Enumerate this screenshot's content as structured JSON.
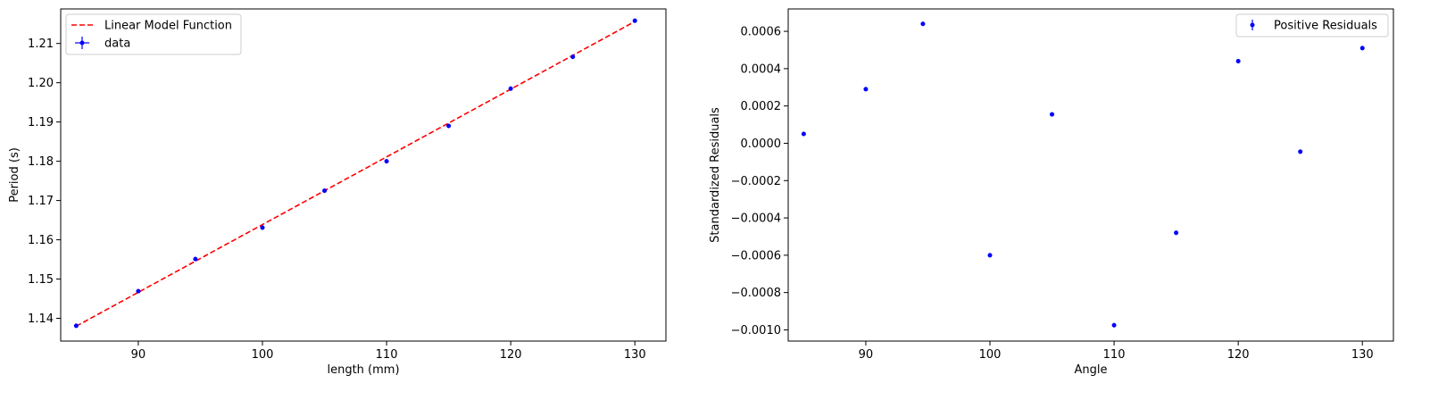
{
  "chart_data": [
    {
      "type": "scatter",
      "xlabel": "length (mm)",
      "ylabel": "Period (s)",
      "xlim": [
        83.75,
        132.5
      ],
      "ylim": [
        1.1342,
        1.2188
      ],
      "xticks": [
        90,
        100,
        110,
        120,
        130
      ],
      "yticks": [
        1.14,
        1.15,
        1.16,
        1.17,
        1.18,
        1.19,
        1.2,
        1.21
      ],
      "ytick_labels": [
        "1.14",
        "1.15",
        "1.16",
        "1.17",
        "1.18",
        "1.19",
        "1.20",
        "1.21"
      ],
      "legend_position": "top-left",
      "series": [
        {
          "name": "Linear Model Function",
          "kind": "line",
          "style": "dashed",
          "color": "#ff0000",
          "x": [
            85,
            130
          ],
          "y": [
            1.138,
            1.2156
          ]
        },
        {
          "name": "data",
          "kind": "errorbar",
          "color": "#0000ff",
          "x": [
            85,
            90,
            94.6,
            100,
            105,
            110,
            115,
            120,
            125,
            130
          ],
          "y": [
            1.1381,
            1.1469,
            1.1551,
            1.1631,
            1.1725,
            1.18,
            1.189,
            1.1985,
            1.2066,
            1.2158
          ]
        }
      ]
    },
    {
      "type": "scatter",
      "xlabel": "Angle",
      "ylabel": "Standardized Residuals",
      "xlim": [
        83.75,
        132.5
      ],
      "ylim": [
        -0.00106,
        0.00072
      ],
      "xticks": [
        90,
        100,
        110,
        120,
        130
      ],
      "yticks": [
        -0.001,
        -0.0008,
        -0.0006,
        -0.0004,
        -0.0002,
        0.0,
        0.0002,
        0.0004,
        0.0006
      ],
      "ytick_labels": [
        "−0.0010",
        "−0.0008",
        "−0.0006",
        "−0.0004",
        "−0.0002",
        "0.0000",
        "0.0002",
        "0.0004",
        "0.0006"
      ],
      "legend_position": "top-right",
      "series": [
        {
          "name": "Positive Residuals",
          "kind": "errorbar",
          "color": "#0000ff",
          "x": [
            85,
            90,
            94.6,
            100,
            105,
            110,
            115,
            120,
            125,
            130
          ],
          "y": [
            5e-05,
            0.00029,
            0.00064,
            -0.0006,
            0.000155,
            -0.000975,
            -0.00048,
            0.00044,
            -4.5e-05,
            0.00051
          ]
        }
      ]
    }
  ]
}
